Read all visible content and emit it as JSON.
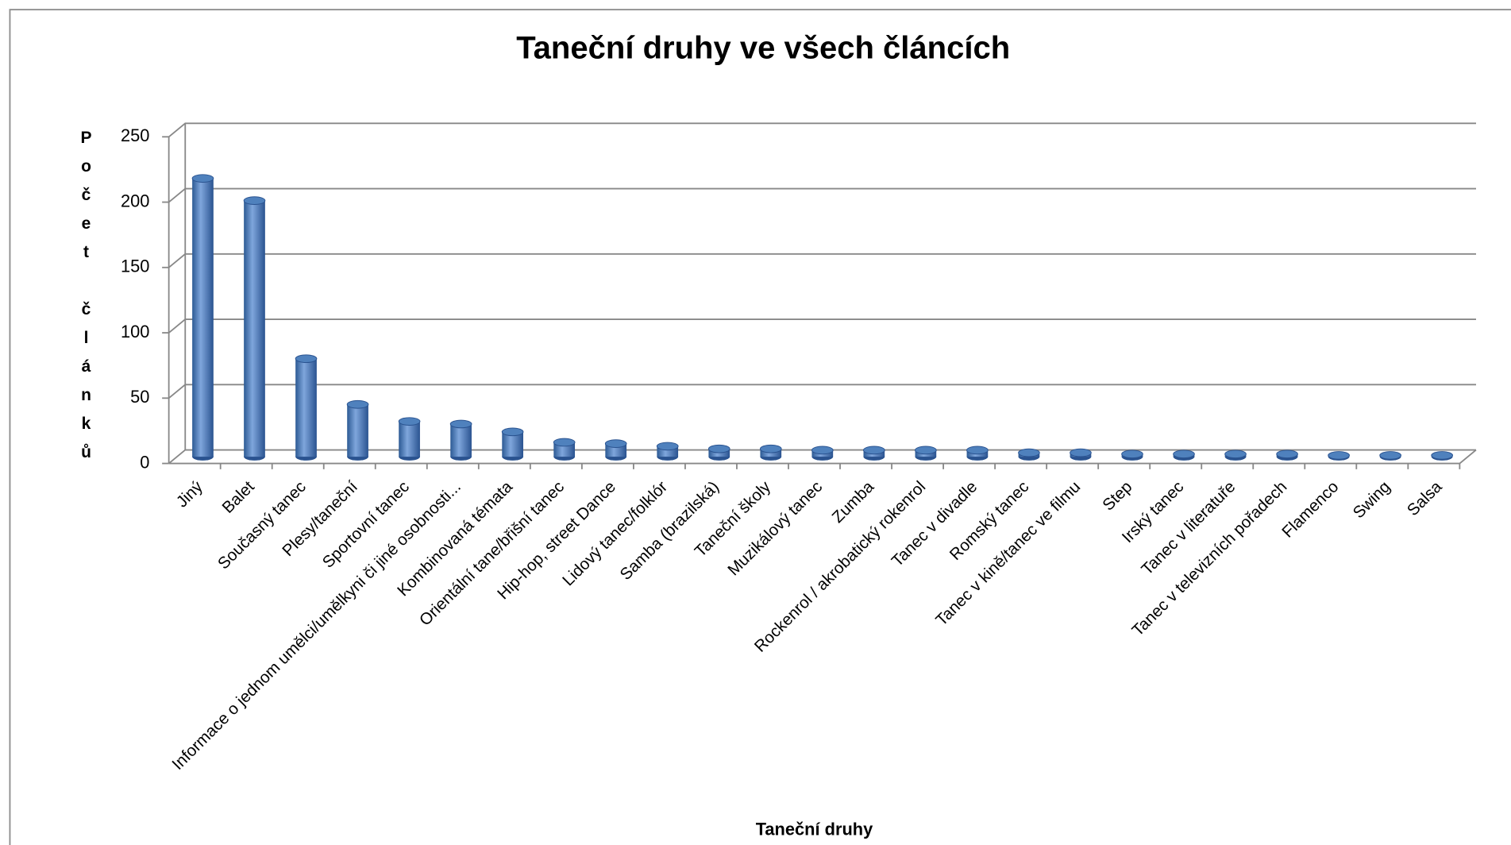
{
  "chart_data": {
    "type": "bar",
    "title": "Taneční druhy ve všech článcích",
    "x_label": "Taneční druhy",
    "y_label": "Počet článků",
    "categories": [
      "Jiný",
      "Balet",
      "Současný tanec",
      "Plesy/taneční",
      "Sportovní tanec",
      "Informace o jednom umělci/umělkyni či jiné osobnosti...",
      "Kombinovaná témata",
      "Orientální tane/břišní tanec",
      "Hip-hop, street Dance",
      "Lidový tanec/folklór",
      "Samba (brazilská)",
      "Taneční školy",
      "Muzikálový tanec",
      "Zumba",
      "Rockenrol / akrobatický rokenrol",
      "Tanec v divadle",
      "Romský tanec",
      "Tanec v kině/tanec ve filmu",
      "Step",
      "Irský tanec",
      "Tanec v literatuře",
      "Tanec v televizních pořadech",
      "Flamenco",
      "Swing",
      "Salsa"
    ],
    "values": [
      213,
      196,
      75,
      40,
      27,
      25,
      19,
      11,
      10,
      8,
      6,
      6,
      5,
      5,
      5,
      5,
      3,
      3,
      2,
      2,
      2,
      2,
      1,
      1,
      1
    ],
    "color": "#4f81bd",
    "ylim": [
      0,
      250
    ],
    "yticks": [
      0,
      50,
      100,
      150,
      200,
      250
    ],
    "grid": true
  }
}
